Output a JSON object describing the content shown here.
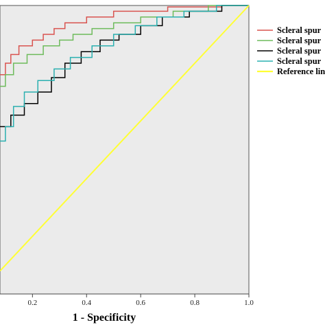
{
  "chart_data": {
    "type": "line",
    "title": "",
    "xlabel": "1 - Specificity",
    "ylabel": "",
    "xlim": [
      0,
      1.0
    ],
    "ylim": [
      0,
      1.0
    ],
    "x_visible_range": [
      0.08,
      1.0
    ],
    "x_ticks": [
      "0.2",
      "0.4",
      "0.6",
      "0.8",
      "1.0"
    ],
    "x_tick_values": [
      0.2,
      0.4,
      0.6,
      0.8,
      1.0
    ],
    "grid": false,
    "background_color": "#ebebeb",
    "legend_position": "right",
    "series": [
      {
        "name": "Scleral spur",
        "color": "#d9534f",
        "line_style": "step",
        "points": [
          [
            0.08,
            0.76
          ],
          [
            0.1,
            0.76
          ],
          [
            0.1,
            0.8
          ],
          [
            0.12,
            0.8
          ],
          [
            0.12,
            0.83
          ],
          [
            0.15,
            0.83
          ],
          [
            0.15,
            0.86
          ],
          [
            0.2,
            0.86
          ],
          [
            0.2,
            0.88
          ],
          [
            0.24,
            0.88
          ],
          [
            0.24,
            0.9
          ],
          [
            0.28,
            0.9
          ],
          [
            0.28,
            0.92
          ],
          [
            0.32,
            0.92
          ],
          [
            0.32,
            0.94
          ],
          [
            0.4,
            0.94
          ],
          [
            0.4,
            0.96
          ],
          [
            0.5,
            0.96
          ],
          [
            0.5,
            0.98
          ],
          [
            0.7,
            0.98
          ],
          [
            0.7,
            0.995
          ],
          [
            0.9,
            0.995
          ],
          [
            0.9,
            1.0
          ],
          [
            1.0,
            1.0
          ]
        ]
      },
      {
        "name": "Scleral spur",
        "color": "#6dbb5b",
        "line_style": "step",
        "points": [
          [
            0.08,
            0.72
          ],
          [
            0.1,
            0.72
          ],
          [
            0.1,
            0.76
          ],
          [
            0.13,
            0.76
          ],
          [
            0.13,
            0.8
          ],
          [
            0.18,
            0.8
          ],
          [
            0.18,
            0.83
          ],
          [
            0.24,
            0.83
          ],
          [
            0.24,
            0.86
          ],
          [
            0.3,
            0.86
          ],
          [
            0.3,
            0.88
          ],
          [
            0.35,
            0.88
          ],
          [
            0.35,
            0.9
          ],
          [
            0.42,
            0.9
          ],
          [
            0.42,
            0.92
          ],
          [
            0.5,
            0.92
          ],
          [
            0.5,
            0.94
          ],
          [
            0.6,
            0.94
          ],
          [
            0.6,
            0.96
          ],
          [
            0.72,
            0.96
          ],
          [
            0.72,
            0.98
          ],
          [
            0.85,
            0.98
          ],
          [
            0.85,
            1.0
          ],
          [
            1.0,
            1.0
          ]
        ]
      },
      {
        "name": "Scleral spur",
        "color": "#000000",
        "line_style": "step",
        "points": [
          [
            0.08,
            0.58
          ],
          [
            0.12,
            0.58
          ],
          [
            0.12,
            0.62
          ],
          [
            0.17,
            0.62
          ],
          [
            0.17,
            0.66
          ],
          [
            0.22,
            0.66
          ],
          [
            0.22,
            0.7
          ],
          [
            0.27,
            0.7
          ],
          [
            0.27,
            0.75
          ],
          [
            0.32,
            0.75
          ],
          [
            0.32,
            0.8
          ],
          [
            0.38,
            0.8
          ],
          [
            0.38,
            0.84
          ],
          [
            0.45,
            0.84
          ],
          [
            0.45,
            0.88
          ],
          [
            0.52,
            0.88
          ],
          [
            0.52,
            0.9
          ],
          [
            0.6,
            0.9
          ],
          [
            0.6,
            0.93
          ],
          [
            0.68,
            0.93
          ],
          [
            0.68,
            0.96
          ],
          [
            0.78,
            0.96
          ],
          [
            0.78,
            0.98
          ],
          [
            0.9,
            0.98
          ],
          [
            0.9,
            1.0
          ],
          [
            1.0,
            1.0
          ]
        ]
      },
      {
        "name": "Scleral spur",
        "color": "#2ab0b0",
        "line_style": "step",
        "points": [
          [
            0.08,
            0.53
          ],
          [
            0.1,
            0.53
          ],
          [
            0.1,
            0.58
          ],
          [
            0.13,
            0.58
          ],
          [
            0.13,
            0.65
          ],
          [
            0.17,
            0.65
          ],
          [
            0.17,
            0.7
          ],
          [
            0.22,
            0.7
          ],
          [
            0.22,
            0.74
          ],
          [
            0.28,
            0.74
          ],
          [
            0.28,
            0.78
          ],
          [
            0.34,
            0.78
          ],
          [
            0.34,
            0.82
          ],
          [
            0.42,
            0.82
          ],
          [
            0.42,
            0.86
          ],
          [
            0.5,
            0.86
          ],
          [
            0.5,
            0.9
          ],
          [
            0.58,
            0.9
          ],
          [
            0.58,
            0.93
          ],
          [
            0.66,
            0.93
          ],
          [
            0.66,
            0.96
          ],
          [
            0.76,
            0.96
          ],
          [
            0.76,
            0.98
          ],
          [
            0.88,
            0.98
          ],
          [
            0.88,
            1.0
          ],
          [
            1.0,
            1.0
          ]
        ]
      },
      {
        "name": "Reference lin",
        "color": "#ffff33",
        "line_style": "straight",
        "points": [
          [
            0.08,
            0.08
          ],
          [
            1.0,
            1.0
          ]
        ]
      }
    ]
  }
}
